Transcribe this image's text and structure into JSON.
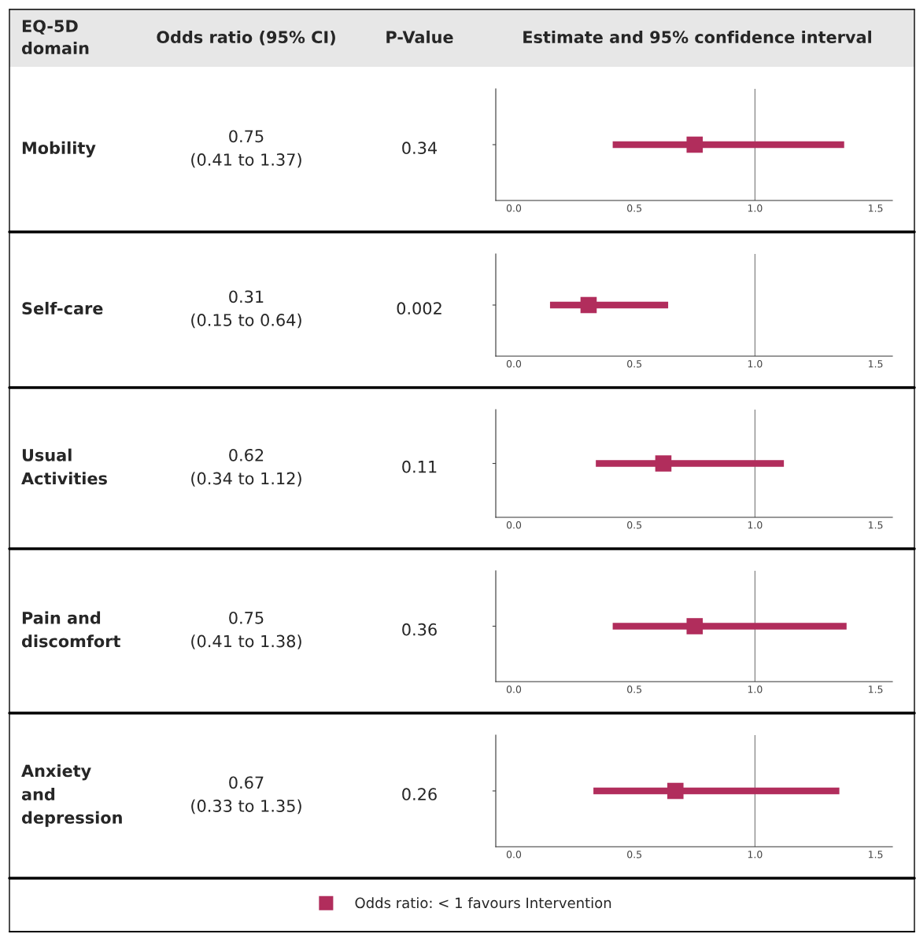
{
  "chart_data": [
    {
      "type": "other",
      "annotations": [
        "EQ-5D\ndomain",
        "Odds ratio (95% CI)",
        "P-Value",
        "Estimate and 95% confidence interval"
      ]
    },
    {
      "type": "scatter",
      "orientation": "horizontal",
      "categories": [
        null
      ],
      "values": [
        0.75
      ],
      "errors": [
        [
          0.41,
          1.37
        ]
      ],
      "color": "#b12d5c",
      "marker": "square",
      "annotations": [
        "Mobility",
        "0.75\n(0.41 to 1.37)",
        "0.34"
      ],
      "xlim": [
        -0.075,
        1.57
      ],
      "xticks": [
        {
          "value": 0,
          "label": "0.0"
        },
        {
          "value": 0.5,
          "label": "0.5"
        },
        {
          "value": 1,
          "label": "1.0"
        },
        {
          "value": 1.5,
          "label": "1.5"
        }
      ],
      "ref_lines": [
        {
          "axis": "x",
          "value": 1,
          "color": "#777777"
        }
      ],
      "tick_labels": "x"
    },
    {
      "type": "scatter",
      "orientation": "horizontal",
      "categories": [
        null
      ],
      "values": [
        0.31
      ],
      "errors": [
        [
          0.15,
          0.64
        ]
      ],
      "color": "#b12d5c",
      "marker": "square",
      "annotations": [
        "Self-care",
        "0.31\n(0.15 to 0.64)",
        "0.002"
      ],
      "xlim": [
        -0.075,
        1.57
      ],
      "xticks": [
        {
          "value": 0,
          "label": "0.0"
        },
        {
          "value": 0.5,
          "label": "0.5"
        },
        {
          "value": 1,
          "label": "1.0"
        },
        {
          "value": 1.5,
          "label": "1.5"
        }
      ],
      "ref_lines": [
        {
          "axis": "x",
          "value": 1,
          "color": "#777777"
        }
      ],
      "tick_labels": "x"
    },
    {
      "type": "scatter",
      "orientation": "horizontal",
      "categories": [
        null
      ],
      "values": [
        0.62
      ],
      "errors": [
        [
          0.34,
          1.12
        ]
      ],
      "color": "#b12d5c",
      "marker": "square",
      "annotations": [
        "Usual\nActivities",
        "0.62\n(0.34 to 1.12)",
        "0.11"
      ],
      "xlim": [
        -0.075,
        1.57
      ],
      "xticks": [
        {
          "value": 0,
          "label": "0.0"
        },
        {
          "value": 0.5,
          "label": "0.5"
        },
        {
          "value": 1,
          "label": "1.0"
        },
        {
          "value": 1.5,
          "label": "1.5"
        }
      ],
      "ref_lines": [
        {
          "axis": "x",
          "value": 1,
          "color": "#777777"
        }
      ],
      "tick_labels": "x"
    },
    {
      "type": "scatter",
      "orientation": "horizontal",
      "categories": [
        null
      ],
      "values": [
        0.75
      ],
      "errors": [
        [
          0.41,
          1.38
        ]
      ],
      "color": "#b12d5c",
      "marker": "square",
      "annotations": [
        "Pain and\ndiscomfort",
        "0.75\n(0.41 to 1.38)",
        "0.36"
      ],
      "xlim": [
        -0.075,
        1.57
      ],
      "xticks": [
        {
          "value": 0,
          "label": "0.0"
        },
        {
          "value": 0.5,
          "label": "0.5"
        },
        {
          "value": 1,
          "label": "1.0"
        },
        {
          "value": 1.5,
          "label": "1.5"
        }
      ],
      "ref_lines": [
        {
          "axis": "x",
          "value": 1,
          "color": "#777777"
        }
      ],
      "tick_labels": "x"
    },
    {
      "type": "scatter",
      "orientation": "horizontal",
      "categories": [
        null
      ],
      "series": [
        {
          "name": "Odds ratio: < 1 favours Intervention",
          "color": "#b12d5c",
          "values": [
            0.67
          ],
          "errors": [
            [
              0.33,
              1.35
            ]
          ]
        }
      ],
      "marker": "square",
      "legend": "bottom",
      "annotations": [
        "Anxiety\nand\ndepression",
        "0.67\n(0.33 to 1.35)",
        "0.26"
      ],
      "xlim": [
        -0.075,
        1.57
      ],
      "xticks": [
        {
          "value": 0,
          "label": "0.0"
        },
        {
          "value": 0.5,
          "label": "0.5"
        },
        {
          "value": 1,
          "label": "1.0"
        },
        {
          "value": 1.5,
          "label": "1.5"
        }
      ],
      "ref_lines": [
        {
          "axis": "x",
          "value": 1,
          "color": "#777777"
        }
      ],
      "tick_labels": "x"
    }
  ]
}
